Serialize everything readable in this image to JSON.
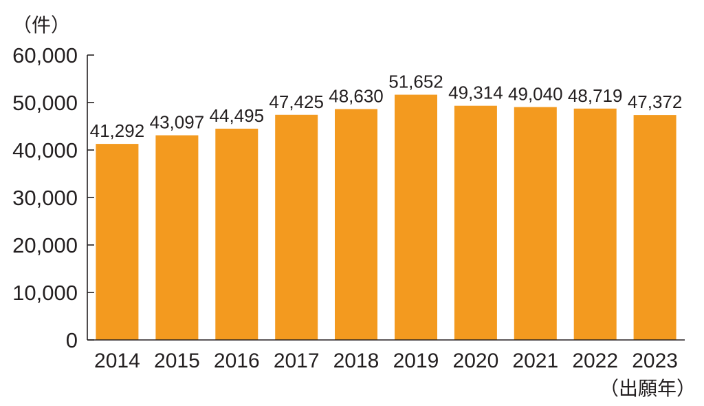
{
  "chart_data": {
    "type": "bar",
    "categories": [
      "2014",
      "2015",
      "2016",
      "2017",
      "2018",
      "2019",
      "2020",
      "2021",
      "2022",
      "2023"
    ],
    "values": [
      41292,
      43097,
      44495,
      47425,
      48630,
      51652,
      49314,
      49040,
      48719,
      47372
    ],
    "data_labels": [
      "41,292",
      "43,097",
      "44,495",
      "47,425",
      "48,630",
      "51,652",
      "49,314",
      "49,040",
      "48,719",
      "47,372"
    ],
    "y_ticks": [
      0,
      10000,
      20000,
      30000,
      40000,
      50000,
      60000
    ],
    "y_tick_labels": [
      "0",
      "10,000",
      "20,000",
      "30,000",
      "40,000",
      "50,000",
      "60,000"
    ],
    "ylim": [
      0,
      60000
    ],
    "y_unit_label": "（件）",
    "x_unit_label": "（出願年）",
    "title": "",
    "grid": false,
    "legend": "none",
    "colors": {
      "bar": "#f39a1f",
      "axis": "#231f20",
      "text": "#231f20"
    }
  }
}
